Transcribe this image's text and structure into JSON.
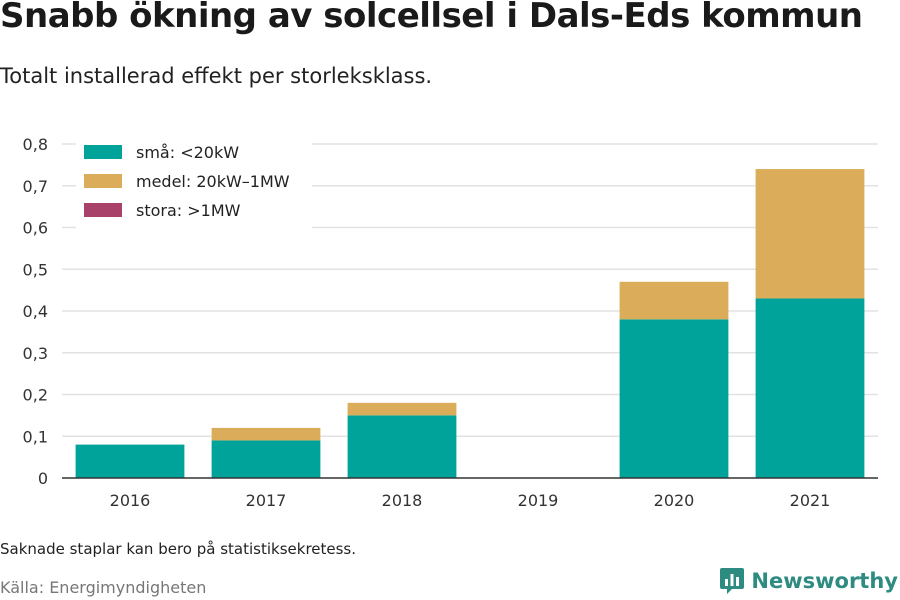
{
  "header": {
    "title": "Snabb ökning av solcellsel i Dals-Eds kommun",
    "subtitle": "Totalt installerad effekt per storleksklass."
  },
  "footer": {
    "note": "Saknade staplar kan bero på statistiksekretess.",
    "source": "Källa: Energimyndigheten",
    "brand": "Newsworthy",
    "brand_icon": "bar-chart-logo-icon",
    "brand_color": "#2e8b82"
  },
  "chart_data": {
    "type": "bar",
    "stacked": true,
    "title": "Snabb ökning av solcellsel i Dals-Eds kommun",
    "subtitle": "Totalt installerad effekt per storleksklass.",
    "xlabel": "",
    "ylabel": "",
    "categories": [
      "2016",
      "2017",
      "2018",
      "2019",
      "2020",
      "2021"
    ],
    "series": [
      {
        "name": "små: <20kW",
        "color": "#00a39a",
        "values": [
          0.08,
          0.09,
          0.15,
          0,
          0.38,
          0.43
        ]
      },
      {
        "name": "medel: 20kW–1MW",
        "color": "#dbad5a",
        "values": [
          0,
          0.03,
          0.03,
          0,
          0.09,
          0.31
        ]
      },
      {
        "name": "stora: >1MW",
        "color": "#a8426b",
        "values": [
          0,
          0,
          0,
          0,
          0,
          0
        ]
      }
    ],
    "ylim": [
      0,
      0.8
    ],
    "yticks": [
      "0",
      "0,1",
      "0,2",
      "0,3",
      "0,4",
      "0,5",
      "0,6",
      "0,7",
      "0,8"
    ],
    "grid": true,
    "legend_position": "top-left"
  }
}
